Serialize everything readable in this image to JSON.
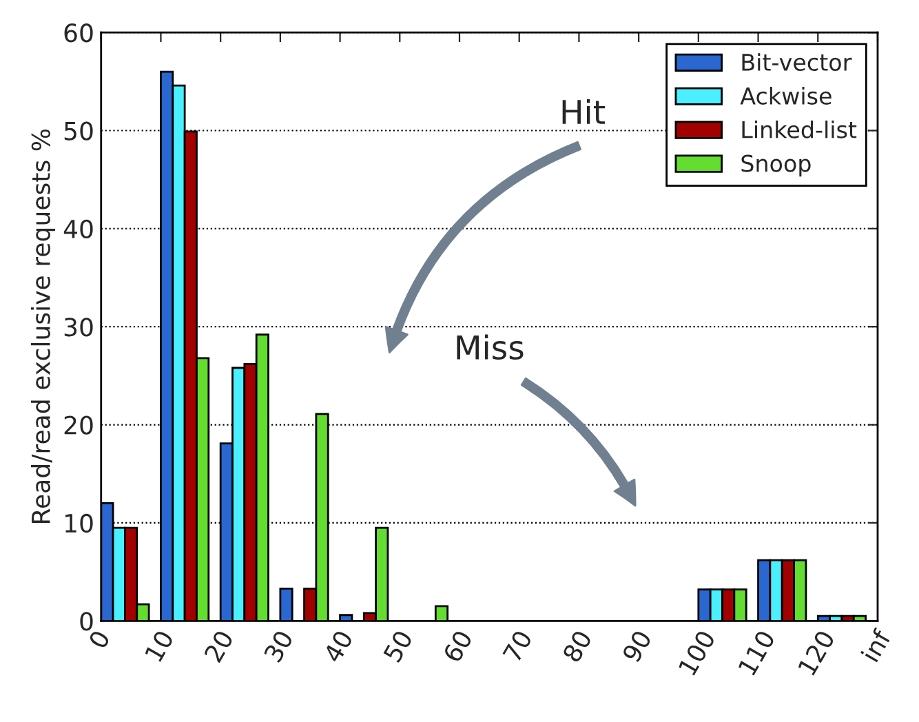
{
  "chart_data": {
    "type": "bar",
    "ylabel": "Read/read exclusive requests %",
    "series": [
      {
        "name": "Bit-vector",
        "color": "#2a67d0",
        "x": [
          1,
          11,
          21,
          31,
          41,
          51,
          61,
          71,
          81,
          91,
          101,
          111,
          121
        ],
        "values": [
          12.0,
          56.0,
          18.1,
          3.3,
          0.6,
          null,
          null,
          null,
          null,
          null,
          3.2,
          6.2,
          0.5
        ]
      },
      {
        "name": "Ackwise",
        "color": "#4af0ff",
        "x": [
          3,
          13,
          23,
          33,
          43,
          53,
          63,
          73,
          83,
          93,
          103,
          113,
          123
        ],
        "values": [
          9.5,
          54.6,
          25.8,
          null,
          null,
          null,
          null,
          null,
          null,
          null,
          3.2,
          6.2,
          0.5
        ]
      },
      {
        "name": "Linked-list",
        "color": "#a30000",
        "x": [
          5,
          15,
          25,
          35,
          45,
          55,
          65,
          75,
          85,
          95,
          105,
          115,
          125
        ],
        "values": [
          9.5,
          49.9,
          26.2,
          3.3,
          0.8,
          null,
          null,
          null,
          null,
          null,
          3.2,
          6.2,
          0.5
        ]
      },
      {
        "name": "Snoop",
        "color": "#62dd30",
        "x": [
          7,
          17,
          27,
          37,
          47,
          57,
          67,
          77,
          87,
          97,
          107,
          117,
          127
        ],
        "values": [
          1.7,
          26.8,
          29.2,
          21.1,
          9.5,
          1.5,
          null,
          null,
          null,
          null,
          3.2,
          6.2,
          0.5
        ]
      }
    ],
    "xlim": [
      0,
      130
    ],
    "xticks": [
      0,
      10,
      20,
      30,
      40,
      50,
      60,
      70,
      80,
      90,
      100,
      110,
      120,
      {
        "value": 130,
        "label": "inf"
      }
    ],
    "ylim": [
      0,
      60
    ],
    "yticks": [
      0,
      10,
      20,
      30,
      40,
      50,
      60
    ],
    "grid": "y",
    "legend": "top right",
    "annotations": [
      "Hit",
      "Miss"
    ]
  }
}
